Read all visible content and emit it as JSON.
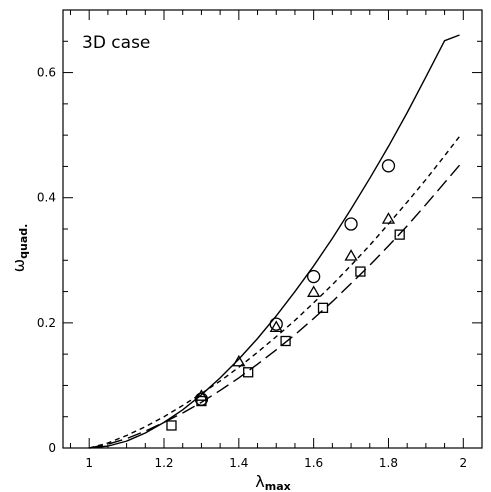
{
  "chart_data": {
    "type": "line",
    "annotation": "3D case",
    "xlabel": {
      "base": "λ",
      "sub": "max"
    },
    "ylabel": {
      "base": "ω",
      "sub": "quad."
    },
    "xlim": [
      0.93,
      2.05
    ],
    "ylim": [
      0,
      0.7
    ],
    "xticks": [
      1,
      1.2,
      1.4,
      1.6,
      1.8,
      2
    ],
    "xtick_labels": [
      "1",
      "1.2",
      "1.4",
      "1.6",
      "1.8",
      "2"
    ],
    "yticks": [
      0,
      0.2,
      0.4,
      0.6
    ],
    "ytick_labels": [
      "0",
      "0.2",
      "0.4",
      "0.6"
    ],
    "grid": false,
    "legend": "none",
    "color": "#000000",
    "series": [
      {
        "line_style": "solid",
        "marker": "circle",
        "curve_x": [
          1,
          1.05,
          1.1,
          1.15,
          1.2,
          1.25,
          1.3,
          1.35,
          1.4,
          1.45,
          1.5,
          1.55,
          1.6,
          1.65,
          1.7,
          1.75,
          1.8,
          1.85,
          1.9,
          1.95,
          1.99
        ],
        "curve_y": [
          0,
          0.003,
          0.011,
          0.024,
          0.041,
          0.061,
          0.085,
          0.112,
          0.142,
          0.175,
          0.211,
          0.25,
          0.291,
          0.335,
          0.382,
          0.431,
          0.482,
          0.536,
          0.593,
          0.651,
          0.66
        ],
        "points_x": [
          1.3,
          1.5,
          1.6,
          1.7,
          1.8
        ],
        "points_y": [
          0.078,
          0.198,
          0.274,
          0.358,
          0.451
        ]
      },
      {
        "line_style": "short-dash",
        "marker": "triangle",
        "curve_x": [
          1,
          1.05,
          1.1,
          1.15,
          1.2,
          1.25,
          1.3,
          1.35,
          1.4,
          1.45,
          1.5,
          1.55,
          1.6,
          1.65,
          1.7,
          1.75,
          1.8,
          1.85,
          1.9,
          1.95,
          1.99
        ],
        "curve_y": [
          0,
          0.008,
          0.02,
          0.034,
          0.05,
          0.068,
          0.087,
          0.107,
          0.129,
          0.153,
          0.178,
          0.204,
          0.232,
          0.261,
          0.292,
          0.324,
          0.358,
          0.393,
          0.429,
          0.467,
          0.498
        ],
        "points_x": [
          1.3,
          1.4,
          1.5,
          1.6,
          1.7,
          1.8
        ],
        "points_y": [
          0.083,
          0.138,
          0.193,
          0.249,
          0.307,
          0.366
        ]
      },
      {
        "line_style": "long-dash",
        "marker": "square",
        "curve_x": [
          1,
          1.05,
          1.1,
          1.15,
          1.2,
          1.25,
          1.3,
          1.35,
          1.4,
          1.45,
          1.5,
          1.55,
          1.6,
          1.65,
          1.7,
          1.75,
          1.8,
          1.85,
          1.9,
          1.95,
          1.99
        ],
        "curve_y": [
          0,
          0.006,
          0.015,
          0.027,
          0.041,
          0.056,
          0.073,
          0.092,
          0.112,
          0.134,
          0.157,
          0.181,
          0.207,
          0.234,
          0.263,
          0.292,
          0.323,
          0.355,
          0.389,
          0.424,
          0.452
        ],
        "points_x": [
          1.22,
          1.3,
          1.425,
          1.525,
          1.625,
          1.725,
          1.83
        ],
        "points_y": [
          0.036,
          0.075,
          0.121,
          0.171,
          0.224,
          0.282,
          0.341
        ]
      }
    ]
  }
}
